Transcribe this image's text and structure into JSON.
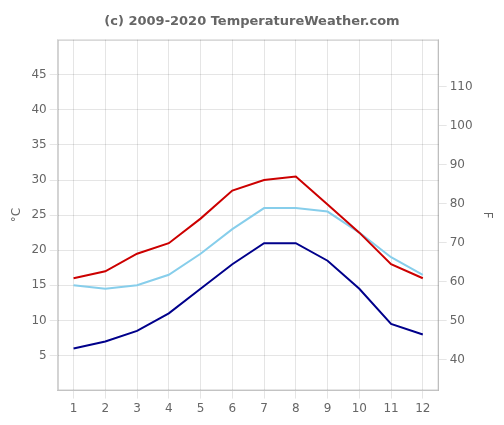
{
  "chart_data": {
    "type": "line",
    "title": "(c) 2009-2020 TemperatureWeather.com",
    "ylabel": "°C",
    "y2label": "F",
    "x": [
      1,
      2,
      3,
      4,
      5,
      6,
      7,
      8,
      9,
      10,
      11,
      12
    ],
    "series": [
      {
        "color": "#cc0000",
        "values": [
          16.0,
          17.0,
          19.5,
          21.0,
          24.5,
          28.5,
          30.0,
          30.5,
          26.5,
          22.5,
          18.0,
          16.0
        ]
      },
      {
        "color": "#00008b",
        "values": [
          6.0,
          7.0,
          8.5,
          11.0,
          14.5,
          18.0,
          21.0,
          21.0,
          18.5,
          14.5,
          9.5,
          8.0
        ]
      },
      {
        "color": "#87ceeb",
        "values": [
          15.0,
          14.5,
          15.0,
          16.5,
          19.5,
          23.0,
          26.0,
          26.0,
          25.5,
          22.5,
          19.0,
          16.5
        ]
      }
    ],
    "xlim": [
      0.5,
      12.5
    ],
    "xticks": [
      1,
      2,
      3,
      4,
      5,
      6,
      7,
      8,
      9,
      10,
      11,
      12
    ],
    "ylim": [
      0,
      50
    ],
    "yticks": [
      5,
      10,
      15,
      20,
      25,
      30,
      35,
      40,
      45
    ],
    "y2lim": [
      32,
      122
    ],
    "y2ticks": [
      40,
      50,
      60,
      70,
      80,
      90,
      100,
      110
    ],
    "grid": true
  }
}
